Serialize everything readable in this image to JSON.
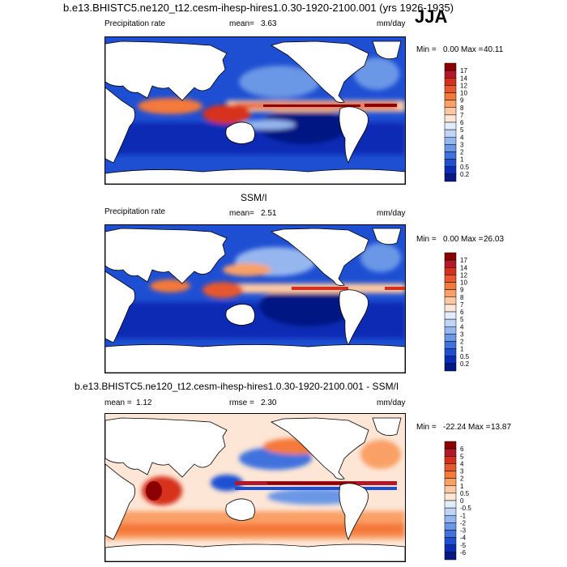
{
  "header": {
    "title": "b.e13.BHISTC5.ne120_t12.cesm-ihesp-hires1.0.30-1920-2100.001 (yrs 1926-1935)",
    "season": "JJA"
  },
  "panels": [
    {
      "id": "model",
      "var_label": "Precipitation rate",
      "mean_label": "mean=",
      "mean_value": "3.63",
      "units": "mm/day",
      "min_label": "Min =",
      "min_value": "0.00",
      "max_label": "Max =",
      "max_value": "40.11"
    },
    {
      "id": "obs",
      "subtitle": "SSM/I",
      "var_label": "Precipitation rate",
      "mean_label": "mean=",
      "mean_value": "2.51",
      "units": "mm/day",
      "min_label": "Min =",
      "min_value": "0.00",
      "max_label": "Max =",
      "max_value": "26.03"
    },
    {
      "id": "diff",
      "subtitle": "b.e13.BHISTC5.ne120_t12.cesm-ihesp-hires1.0.30-1920-2100.001 - SSM/I",
      "mean_label": "mean =",
      "mean_value": "1.12",
      "rmse_label": "rmse =",
      "rmse_value": "2.30",
      "units": "mm/day",
      "min_label": "Min =",
      "min_value": "-22.24",
      "max_label": "Max =",
      "max_value": "13.87"
    }
  ],
  "chart_data": [
    {
      "type": "heatmap",
      "title": "Precipitation rate",
      "units": "mm/day",
      "mean": 3.63,
      "min": 0.0,
      "max": 40.11,
      "colorbar_levels": [
        "17",
        "14",
        "12",
        "10",
        "9",
        "8",
        "7",
        "6",
        "5",
        "4",
        "3",
        "2",
        "1",
        "0.5",
        "0.2"
      ],
      "colorbar_colors": [
        "#8b0000",
        "#b2182b",
        "#d6301d",
        "#e8582e",
        "#f4793a",
        "#f9a066",
        "#fcc8a4",
        "#fde6d6",
        "#e3ecfb",
        "#c0d5f5",
        "#95b6ee",
        "#6a97e6",
        "#4172de",
        "#1e4fd3",
        "#0a2bb5",
        "#061882"
      ]
    },
    {
      "type": "heatmap",
      "title": "SSM/I",
      "units": "mm/day",
      "mean": 2.51,
      "min": 0.0,
      "max": 26.03,
      "colorbar_levels": [
        "17",
        "14",
        "12",
        "10",
        "9",
        "8",
        "7",
        "6",
        "5",
        "4",
        "3",
        "2",
        "1",
        "0.5",
        "0.2"
      ],
      "colorbar_colors": [
        "#8b0000",
        "#b2182b",
        "#d6301d",
        "#e8582e",
        "#f4793a",
        "#f9a066",
        "#fcc8a4",
        "#fde6d6",
        "#e3ecfb",
        "#c0d5f5",
        "#95b6ee",
        "#6a97e6",
        "#4172de",
        "#1e4fd3",
        "#0a2bb5",
        "#061882"
      ]
    },
    {
      "type": "heatmap",
      "title": "b.e13.BHISTC5.ne120_t12.cesm-ihesp-hires1.0.30-1920-2100.001 - SSM/I",
      "units": "mm/day",
      "mean": 1.12,
      "rmse": 2.3,
      "min": -22.24,
      "max": 13.87,
      "colorbar_levels": [
        "6",
        "5",
        "4",
        "3",
        "2",
        "1",
        "0.5",
        "0",
        "-0.5",
        "-1",
        "-2",
        "-3",
        "-4",
        "-5",
        "-6"
      ],
      "colorbar_colors": [
        "#8b0000",
        "#b2182b",
        "#d6301d",
        "#e8582e",
        "#f4793a",
        "#f9a066",
        "#fcc8a4",
        "#fde6d6",
        "#e3ecfb",
        "#c0d5f5",
        "#95b6ee",
        "#6a97e6",
        "#4172de",
        "#1e4fd3",
        "#0a2bb5",
        "#061882"
      ]
    }
  ],
  "palette": {
    "ocean_deep": "#0a2bb5",
    "ocean_mid": "#1e4fd3",
    "ocean_light": "#6a97e6",
    "pale": "#c0d5f5",
    "warm_light": "#f9a066",
    "warm": "#e8582e",
    "warm_dark": "#b2182b",
    "extreme": "#8b0000",
    "land": "#ffffff",
    "coast": "#000000"
  }
}
